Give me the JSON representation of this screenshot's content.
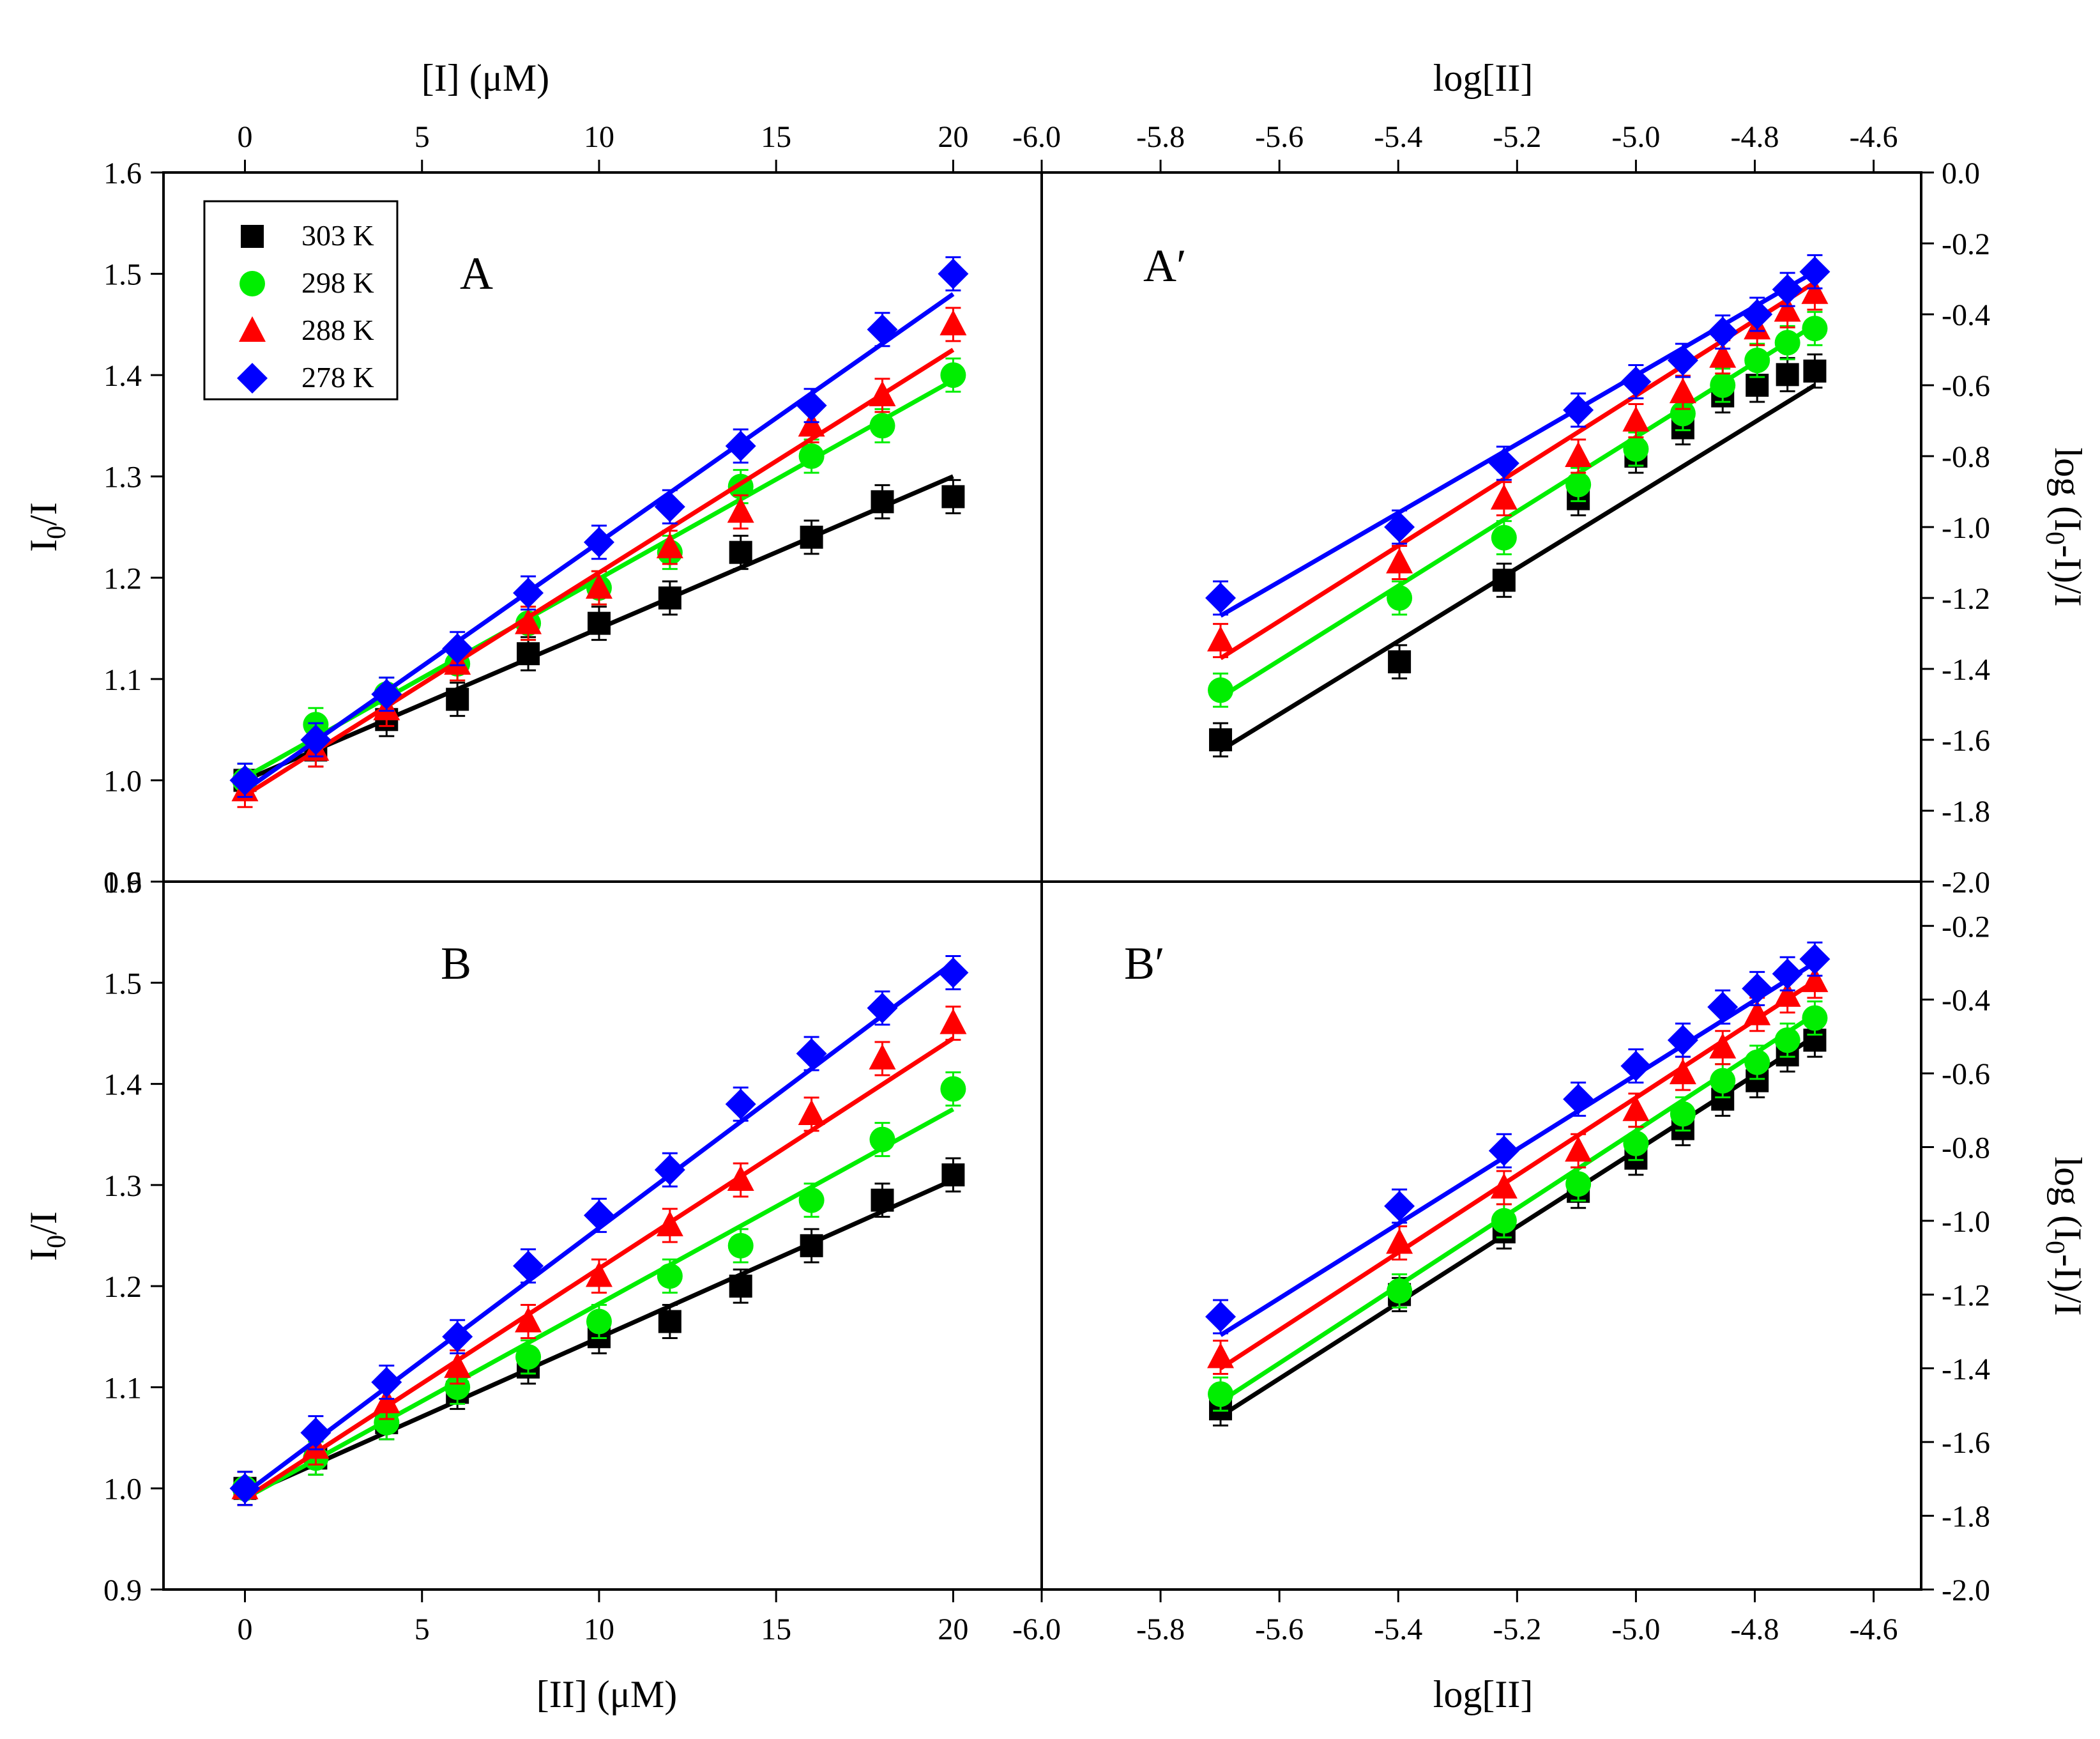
{
  "chart_data": {
    "type": "scatter",
    "figure_axes": {
      "top_left_axis_label": "[I] (μM)",
      "top_right_axis_label": "log[II]",
      "bottom_left_axis_label": "[II] (μM)",
      "bottom_right_axis_label": "log[II]",
      "left_y_label": {
        "main": "I",
        "sub": "0",
        "tail": "/I"
      },
      "right_y_label": {
        "pre": "log (I",
        "sub": "0",
        "tail": "-I)/I"
      }
    },
    "ticks": {
      "conc_x": [
        "0",
        "5",
        "10",
        "15",
        "20"
      ],
      "log_x": [
        "-6.0",
        "-5.8",
        "-5.6",
        "-5.4",
        "-5.2",
        "-5.0",
        "-4.8",
        "-4.6"
      ],
      "ratio_y": [
        "0.9",
        "1.0",
        "1.1",
        "1.2",
        "1.3",
        "1.4",
        "1.5",
        "1.6"
      ],
      "logy_top": [
        "-2.0",
        "-1.8",
        "-1.6",
        "-1.4",
        "-1.2",
        "-1.0",
        "-0.8",
        "-0.6",
        "-0.4",
        "-0.2",
        "0.0"
      ],
      "logy_bottom": [
        "-2.0",
        "-1.8",
        "-1.6",
        "-1.4",
        "-1.2",
        "-1.0",
        "-0.8",
        "-0.6",
        "-0.4",
        "-0.2"
      ]
    },
    "legend": [
      {
        "label": "303 K",
        "color": "#000000",
        "marker": "square"
      },
      {
        "label": "298 K",
        "color": "#00ee00",
        "marker": "circle"
      },
      {
        "label": "288 K",
        "color": "#ff0000",
        "marker": "triangle"
      },
      {
        "label": "278 K",
        "color": "#0000ff",
        "marker": "diamond"
      }
    ],
    "panels": [
      {
        "id": "A",
        "label": "A",
        "xlim": [
          -2.3,
          22.5
        ],
        "ylim": [
          0.9,
          1.6
        ],
        "x": [
          0,
          2,
          4,
          6,
          8,
          10,
          12,
          14,
          16,
          18,
          20
        ],
        "series": [
          {
            "name": "303 K",
            "color": "#000000",
            "marker": "square",
            "values": [
              1.0,
              1.03,
              1.06,
              1.08,
              1.125,
              1.155,
              1.18,
              1.225,
              1.24,
              1.275,
              1.28
            ],
            "fit": [
              1.0,
              1.3
            ]
          },
          {
            "name": "298 K",
            "color": "#00ee00",
            "marker": "circle",
            "values": [
              1.0,
              1.055,
              1.085,
              1.115,
              1.155,
              1.19,
              1.225,
              1.29,
              1.32,
              1.35,
              1.4
            ],
            "fit": [
              1.003,
              1.395
            ]
          },
          {
            "name": "288 K",
            "color": "#ff0000",
            "marker": "triangle",
            "values": [
              0.99,
              1.03,
              1.07,
              1.115,
              1.155,
              1.19,
              1.23,
              1.265,
              1.35,
              1.38,
              1.45
            ],
            "fit": [
              0.985,
              1.425
            ]
          },
          {
            "name": "278 K",
            "color": "#0000ff",
            "marker": "diamond",
            "values": [
              1.0,
              1.04,
              1.085,
              1.13,
              1.185,
              1.235,
              1.27,
              1.33,
              1.37,
              1.445,
              1.5
            ],
            "fit": [
              0.99,
              1.48
            ]
          }
        ]
      },
      {
        "id": "B",
        "label": "B",
        "xlim": [
          -2.3,
          22.5
        ],
        "ylim": [
          0.9,
          1.6
        ],
        "x": [
          0,
          2,
          4,
          6,
          8,
          10,
          12,
          14,
          16,
          18,
          20
        ],
        "series": [
          {
            "name": "303 K",
            "color": "#000000",
            "marker": "square",
            "values": [
              1.0,
              1.03,
              1.065,
              1.095,
              1.12,
              1.15,
              1.165,
              1.2,
              1.24,
              1.285,
              1.31
            ],
            "fit": [
              0.993,
              1.305
            ]
          },
          {
            "name": "298 K",
            "color": "#00ee00",
            "marker": "circle",
            "values": [
              1.0,
              1.03,
              1.065,
              1.1,
              1.13,
              1.165,
              1.21,
              1.24,
              1.285,
              1.345,
              1.395
            ],
            "fit": [
              0.99,
              1.375
            ]
          },
          {
            "name": "288 K",
            "color": "#ff0000",
            "marker": "triangle",
            "values": [
              1.0,
              1.04,
              1.085,
              1.12,
              1.165,
              1.21,
              1.26,
              1.305,
              1.37,
              1.425,
              1.46
            ],
            "fit": [
              0.99,
              1.445
            ]
          },
          {
            "name": "278 K",
            "color": "#0000ff",
            "marker": "diamond",
            "values": [
              1.0,
              1.055,
              1.105,
              1.15,
              1.22,
              1.27,
              1.315,
              1.38,
              1.43,
              1.475,
              1.51
            ],
            "fit": [
              0.995,
              1.52
            ]
          }
        ]
      },
      {
        "id": "A2",
        "label": "A′",
        "xlim": [
          -6.0,
          -4.52
        ],
        "ylim": [
          -2.0,
          0.0
        ],
        "x": [
          -5.699,
          -5.398,
          -5.222,
          -5.097,
          -5.0,
          -4.921,
          -4.854,
          -4.796,
          -4.745,
          -4.699
        ],
        "series": [
          {
            "name": "303 K",
            "color": "#000000",
            "marker": "square",
            "values": [
              -1.6,
              -1.38,
              -1.15,
              -0.92,
              -0.8,
              -0.72,
              -0.63,
              -0.6,
              -0.57,
              -0.56
            ],
            "fit": [
              -1.63,
              -0.6
            ]
          },
          {
            "name": "298 K",
            "color": "#00ee00",
            "marker": "circle",
            "values": [
              -1.46,
              -1.2,
              -1.03,
              -0.88,
              -0.78,
              -0.68,
              -0.6,
              -0.53,
              -0.48,
              -0.44
            ],
            "fit": [
              -1.48,
              -0.43
            ]
          },
          {
            "name": "288 K",
            "color": "#ff0000",
            "marker": "triangle",
            "values": [
              -1.32,
              -1.1,
              -0.92,
              -0.8,
              -0.7,
              -0.62,
              -0.52,
              -0.44,
              -0.39,
              -0.34
            ],
            "fit": [
              -1.37,
              -0.31
            ]
          },
          {
            "name": "278 K",
            "color": "#0000ff",
            "marker": "diamond",
            "values": [
              -1.2,
              -1.0,
              -0.82,
              -0.67,
              -0.59,
              -0.53,
              -0.45,
              -0.4,
              -0.33,
              -0.28
            ],
            "fit": [
              -1.25,
              -0.28
            ]
          }
        ]
      },
      {
        "id": "B2",
        "label": "B′",
        "xlim": [
          -6.0,
          -4.52
        ],
        "ylim": [
          -2.0,
          -0.08
        ],
        "x": [
          -5.699,
          -5.398,
          -5.222,
          -5.097,
          -5.0,
          -4.921,
          -4.854,
          -4.796,
          -4.745,
          -4.699
        ],
        "series": [
          {
            "name": "303 K",
            "color": "#000000",
            "marker": "square",
            "values": [
              -1.51,
              -1.2,
              -1.03,
              -0.92,
              -0.83,
              -0.75,
              -0.67,
              -0.62,
              -0.55,
              -0.51
            ],
            "fit": [
              -1.53,
              -0.5
            ]
          },
          {
            "name": "298 K",
            "color": "#00ee00",
            "marker": "circle",
            "values": [
              -1.47,
              -1.19,
              -1.0,
              -0.9,
              -0.79,
              -0.71,
              -0.62,
              -0.57,
              -0.51,
              -0.45
            ],
            "fit": [
              -1.49,
              -0.44
            ]
          },
          {
            "name": "288 K",
            "color": "#ff0000",
            "marker": "triangle",
            "values": [
              -1.37,
              -1.06,
              -0.91,
              -0.81,
              -0.7,
              -0.6,
              -0.53,
              -0.44,
              -0.39,
              -0.35
            ],
            "fit": [
              -1.4,
              -0.35
            ]
          },
          {
            "name": "278 K",
            "color": "#0000ff",
            "marker": "diamond",
            "values": [
              -1.26,
              -0.96,
              -0.81,
              -0.67,
              -0.58,
              -0.51,
              -0.42,
              -0.37,
              -0.33,
              -0.29
            ],
            "fit": [
              -1.31,
              -0.3
            ]
          }
        ]
      }
    ]
  }
}
